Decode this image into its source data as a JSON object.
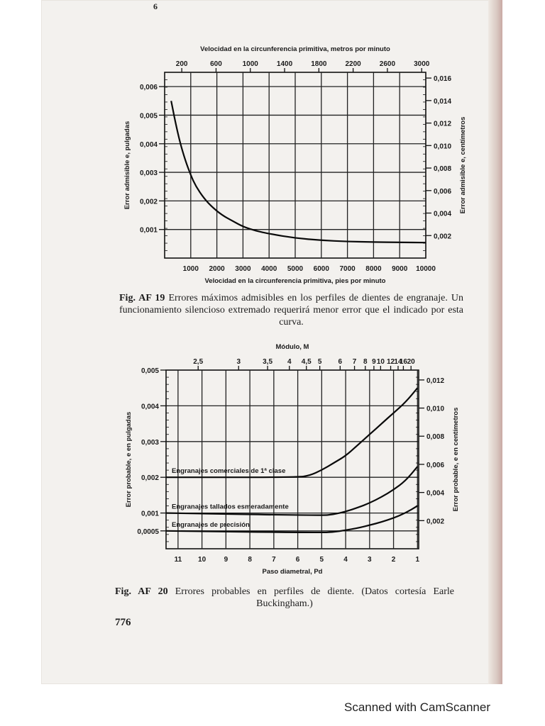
{
  "page": {
    "top_mark": "6",
    "page_number": "776",
    "watermark": "Scanned with CamScanner"
  },
  "fig19": {
    "caption_label": "Fig. AF 19",
    "caption_text": "Errores máximos admisibles en los perfiles de dientes de engranaje. Un funcionamiento silencioso extremado requerirá menor error que el indicado por esta curva."
  },
  "fig20": {
    "caption_label": "Fig. AF 20",
    "caption_text": "Errores probables en perfiles de diente. (Datos cortesía Earle Buckingham.)"
  },
  "chart_data": [
    {
      "type": "line",
      "id": "fig19",
      "title_top": "Velocidad en la circunferencia primitiva, metros por minuto",
      "xlabel": "Velocidad en la circunferencia primitiva, pies por minuto",
      "ylabel": "Error admisible e, pulgadas",
      "ylabel_right": "Error admisible e, centímetros",
      "xlim": [
        0,
        10000
      ],
      "ylim": [
        0,
        0.0065
      ],
      "x_ticks": [
        1000,
        2000,
        3000,
        4000,
        5000,
        6000,
        7000,
        8000,
        9000,
        10000
      ],
      "x_tick_labels": [
        "1000",
        "2000",
        "3000",
        "4000",
        "5000",
        "6000",
        "7000",
        "8000",
        "9000",
        "10000"
      ],
      "y_ticks": [
        0.001,
        0.002,
        0.003,
        0.004,
        0.005,
        0.006
      ],
      "y_tick_labels": [
        "0,001",
        "0,002",
        "0,003",
        "0,004",
        "0,005",
        "0,006"
      ],
      "top_ticks_x": [
        656,
        1969,
        3281,
        4593,
        5906,
        7218,
        8530,
        9843
      ],
      "top_tick_labels": [
        "200",
        "600",
        "1000",
        "1400",
        "1800",
        "2200",
        "2600",
        "3000"
      ],
      "right_ticks_y": [
        0.000787,
        0.001575,
        0.002362,
        0.00315,
        0.003937,
        0.004724,
        0.005512,
        0.006299
      ],
      "right_tick_labels": [
        "0,002",
        "0,004",
        "0,006",
        "0,008",
        "0,010",
        "0,012",
        "0,014",
        "0,016"
      ],
      "grid": true,
      "series": [
        {
          "x": [
            250,
            400,
            600,
            800,
            1000,
            1200,
            1500,
            1800,
            2200,
            2600,
            3000,
            3500,
            4000,
            5000,
            6000,
            7000,
            8000,
            9000,
            10000
          ],
          "y": [
            0.0055,
            0.0048,
            0.004,
            0.0034,
            0.0029,
            0.0025,
            0.0021,
            0.0018,
            0.0015,
            0.0013,
            0.0011,
            0.00095,
            0.00085,
            0.0007,
            0.00062,
            0.00058,
            0.00056,
            0.00055,
            0.00054
          ]
        }
      ]
    },
    {
      "type": "line",
      "id": "fig20",
      "title_top": "Módulo, M",
      "xlabel": "Paso diametral, Pd",
      "ylabel": "Error probable, e en pulgadas",
      "ylabel_right": "Error probable, e en centímetros",
      "xlim": [
        11.5,
        0.95
      ],
      "ylim": [
        0,
        0.005
      ],
      "x_ticks": [
        11,
        10,
        9,
        8,
        7,
        6,
        5,
        4,
        3,
        2,
        1
      ],
      "x_tick_labels": [
        "11",
        "10",
        "9",
        "8",
        "7",
        "6",
        "5",
        "4",
        "3",
        "2",
        "1"
      ],
      "y_ticks": [
        0.0005,
        0.001,
        0.002,
        0.003,
        0.004,
        0.005
      ],
      "y_tick_labels": [
        "0,0005",
        "0,001",
        "0,002",
        "0,003",
        "0,004",
        "0,005"
      ],
      "top_tick_labels": [
        "2,5",
        "3",
        "3,5",
        "4",
        "4,5",
        "5",
        "6",
        "7",
        "8",
        "9",
        "10",
        "12",
        "14",
        "16",
        "20"
      ],
      "top_ticks_x": [
        10.16,
        8.47,
        7.26,
        6.35,
        5.64,
        5.08,
        4.23,
        3.63,
        3.18,
        2.82,
        2.54,
        2.12,
        1.81,
        1.59,
        1.27
      ],
      "right_ticks_y": [
        0.000787,
        0.001575,
        0.002362,
        0.00315,
        0.003937,
        0.004724
      ],
      "right_tick_labels": [
        "0,002",
        "0,004",
        "0,006",
        "0,008",
        "0,010",
        "0,012"
      ],
      "grid": true,
      "series": [
        {
          "name": "Engranajes comerciales de 1ª clase",
          "x": [
            11.5,
            6,
            5.5,
            5,
            4.5,
            4,
            3.5,
            3,
            2.5,
            2,
            1.5,
            1
          ],
          "y": [
            0.002,
            0.002,
            0.00205,
            0.0022,
            0.0024,
            0.0026,
            0.0029,
            0.0032,
            0.0035,
            0.0038,
            0.0041,
            0.0045
          ]
        },
        {
          "name": "Engranajes tallados esmeradamente",
          "x": [
            11.5,
            5,
            4.5,
            4,
            3.5,
            3,
            2.5,
            2,
            1.5,
            1
          ],
          "y": [
            0.001,
            0.00093,
            0.00096,
            0.00104,
            0.00115,
            0.00128,
            0.00145,
            0.00165,
            0.0019,
            0.0023
          ]
        },
        {
          "name": "Engranajes de precisión",
          "x": [
            11.5,
            5,
            4.5,
            4,
            3.5,
            3,
            2.5,
            2,
            1.5,
            1
          ],
          "y": [
            0.0005,
            0.00045,
            0.00047,
            0.00052,
            0.00058,
            0.00066,
            0.00075,
            0.00086,
            0.001,
            0.0012
          ]
        }
      ]
    }
  ]
}
